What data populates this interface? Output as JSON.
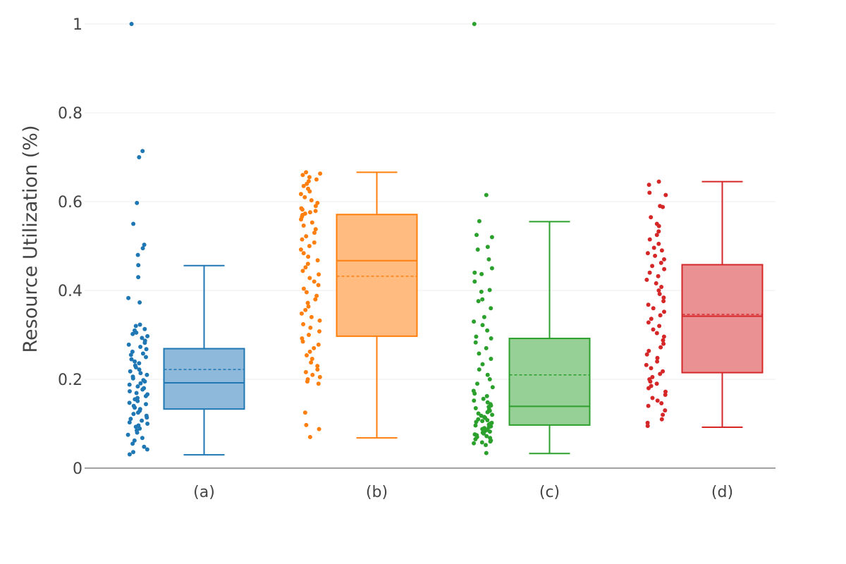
{
  "chart_data": {
    "type": "box",
    "title": "",
    "xlabel": "",
    "ylabel": "Resource Utilization (%)",
    "ylim": [
      0,
      1
    ],
    "yticks": [
      0,
      0.2,
      0.4,
      0.6,
      0.8,
      1
    ],
    "ytick_labels": [
      "0",
      "0.2",
      "0.4",
      "0.6",
      "0.8",
      "1"
    ],
    "grid": true,
    "legend": "none",
    "categories": [
      "(a)",
      "(b)",
      "(c)",
      "(d)"
    ],
    "series": [
      {
        "name": "(a)",
        "color": "#1f77b4",
        "fill": "#8fb9da",
        "min": 0.03,
        "q1": 0.133,
        "median": 0.192,
        "mean": 0.222,
        "q3": 0.269,
        "max": 0.456,
        "points": [
          1.0,
          0.714,
          0.7,
          0.597,
          0.55,
          0.503,
          0.495,
          0.48,
          0.457,
          0.43,
          0.383,
          0.373,
          0.323,
          0.32,
          0.313,
          0.31,
          0.305,
          0.302,
          0.297,
          0.293,
          0.287,
          0.282,
          0.278,
          0.273,
          0.268,
          0.262,
          0.258,
          0.255,
          0.25,
          0.245,
          0.24,
          0.236,
          0.231,
          0.227,
          0.222,
          0.218,
          0.214,
          0.21,
          0.206,
          0.202,
          0.198,
          0.195,
          0.191,
          0.188,
          0.184,
          0.18,
          0.177,
          0.173,
          0.169,
          0.166,
          0.162,
          0.158,
          0.155,
          0.151,
          0.147,
          0.144,
          0.14,
          0.136,
          0.133,
          0.129,
          0.125,
          0.122,
          0.118,
          0.114,
          0.111,
          0.107,
          0.103,
          0.1,
          0.096,
          0.093,
          0.089,
          0.085,
          0.08,
          0.075,
          0.068,
          0.062,
          0.055,
          0.048,
          0.042,
          0.036,
          0.031
        ]
      },
      {
        "name": "(b)",
        "color": "#ff7f0e",
        "fill": "#ffbb80",
        "min": 0.068,
        "q1": 0.297,
        "median": 0.467,
        "mean": 0.432,
        "q3": 0.571,
        "max": 0.666,
        "points": [
          0.666,
          0.663,
          0.66,
          0.655,
          0.65,
          0.646,
          0.64,
          0.635,
          0.629,
          0.623,
          0.617,
          0.61,
          0.603,
          0.597,
          0.59,
          0.585,
          0.582,
          0.579,
          0.576,
          0.573,
          0.57,
          0.566,
          0.56,
          0.553,
          0.546,
          0.538,
          0.53,
          0.522,
          0.515,
          0.508,
          0.5,
          0.492,
          0.484,
          0.476,
          0.468,
          0.46,
          0.452,
          0.444,
          0.436,
          0.428,
          0.42,
          0.412,
          0.404,
          0.396,
          0.388,
          0.38,
          0.372,
          0.364,
          0.356,
          0.348,
          0.34,
          0.332,
          0.324,
          0.316,
          0.308,
          0.3,
          0.292,
          0.285,
          0.278,
          0.27,
          0.262,
          0.254,
          0.246,
          0.238,
          0.23,
          0.222,
          0.216,
          0.21,
          0.205,
          0.2,
          0.195,
          0.19,
          0.125,
          0.097,
          0.088,
          0.07
        ]
      },
      {
        "name": "(c)",
        "color": "#2ca02c",
        "fill": "#96d096",
        "min": 0.033,
        "q1": 0.097,
        "median": 0.139,
        "mean": 0.21,
        "q3": 0.292,
        "max": 0.555,
        "points": [
          1.0,
          0.615,
          0.556,
          0.525,
          0.52,
          0.498,
          0.492,
          0.47,
          0.45,
          0.44,
          0.437,
          0.42,
          0.401,
          0.397,
          0.38,
          0.376,
          0.36,
          0.34,
          0.33,
          0.322,
          0.31,
          0.296,
          0.292,
          0.283,
          0.27,
          0.258,
          0.246,
          0.234,
          0.222,
          0.21,
          0.2,
          0.19,
          0.182,
          0.174,
          0.168,
          0.162,
          0.156,
          0.152,
          0.148,
          0.144,
          0.141,
          0.138,
          0.135,
          0.132,
          0.129,
          0.126,
          0.123,
          0.12,
          0.118,
          0.115,
          0.113,
          0.11,
          0.108,
          0.106,
          0.104,
          0.102,
          0.1,
          0.098,
          0.096,
          0.094,
          0.092,
          0.09,
          0.088,
          0.086,
          0.084,
          0.082,
          0.08,
          0.078,
          0.076,
          0.074,
          0.072,
          0.07,
          0.068,
          0.065,
          0.062,
          0.06,
          0.058,
          0.056,
          0.052,
          0.034
        ]
      },
      {
        "name": "(d)",
        "color": "#d62728",
        "fill": "#ea9293",
        "min": 0.092,
        "q1": 0.215,
        "median": 0.342,
        "mean": 0.346,
        "q3": 0.458,
        "max": 0.645,
        "points": [
          0.645,
          0.638,
          0.62,
          0.615,
          0.59,
          0.588,
          0.565,
          0.55,
          0.545,
          0.533,
          0.525,
          0.515,
          0.505,
          0.496,
          0.49,
          0.484,
          0.478,
          0.47,
          0.462,
          0.455,
          0.448,
          0.44,
          0.432,
          0.424,
          0.416,
          0.408,
          0.4,
          0.392,
          0.384,
          0.376,
          0.368,
          0.36,
          0.352,
          0.344,
          0.336,
          0.328,
          0.32,
          0.312,
          0.304,
          0.296,
          0.288,
          0.28,
          0.272,
          0.264,
          0.256,
          0.248,
          0.24,
          0.232,
          0.225,
          0.218,
          0.212,
          0.205,
          0.2,
          0.195,
          0.19,
          0.185,
          0.18,
          0.172,
          0.165,
          0.158,
          0.152,
          0.146,
          0.14,
          0.13,
          0.12,
          0.11,
          0.102,
          0.095
        ]
      }
    ]
  }
}
